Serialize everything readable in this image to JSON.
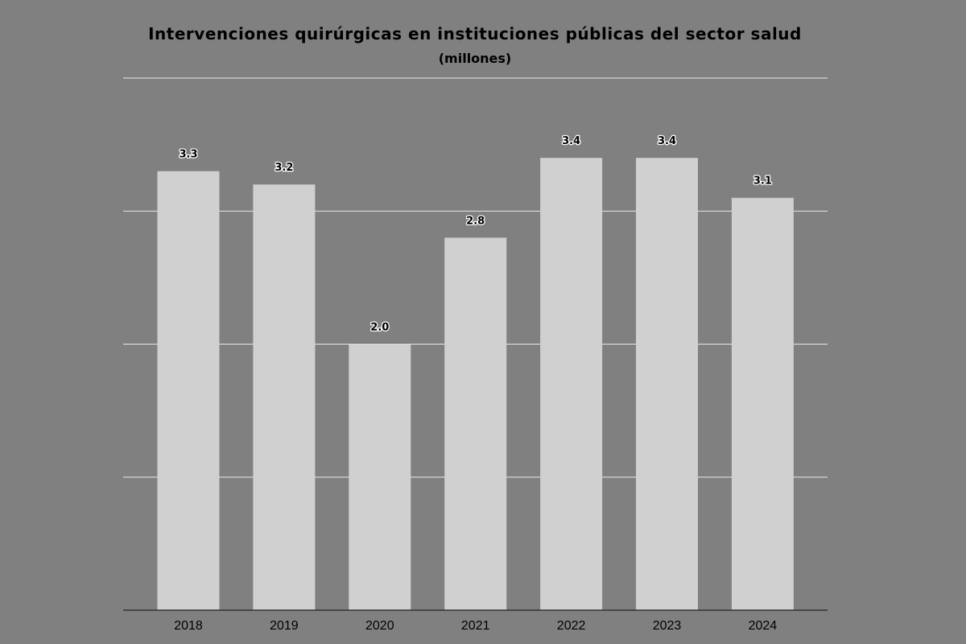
{
  "chart_data": {
    "type": "bar",
    "title": "Intervenciones quirúrgicas en instituciones públicas del sector salud",
    "subtitle": "(millones)",
    "xlabel": "",
    "ylabel": "",
    "categories": [
      "2018",
      "2019",
      "2020",
      "2021",
      "2022",
      "2023",
      "2024"
    ],
    "values": [
      3.3,
      3.2,
      2.0,
      2.8,
      3.4,
      3.4,
      3.1
    ],
    "data_labels": [
      "3.3",
      "3.2",
      "2.0",
      "2.8",
      "3.4",
      "3.4",
      "3.1"
    ],
    "ylim": [
      0,
      4
    ],
    "yticks": [
      0,
      1,
      2,
      3,
      4
    ],
    "grid": true,
    "legend": "none",
    "colors": {
      "background": "#808080",
      "bar": "#d0d0d0",
      "grid": "#e8e8e8",
      "baseline": "#333333",
      "text": "#000000"
    }
  }
}
